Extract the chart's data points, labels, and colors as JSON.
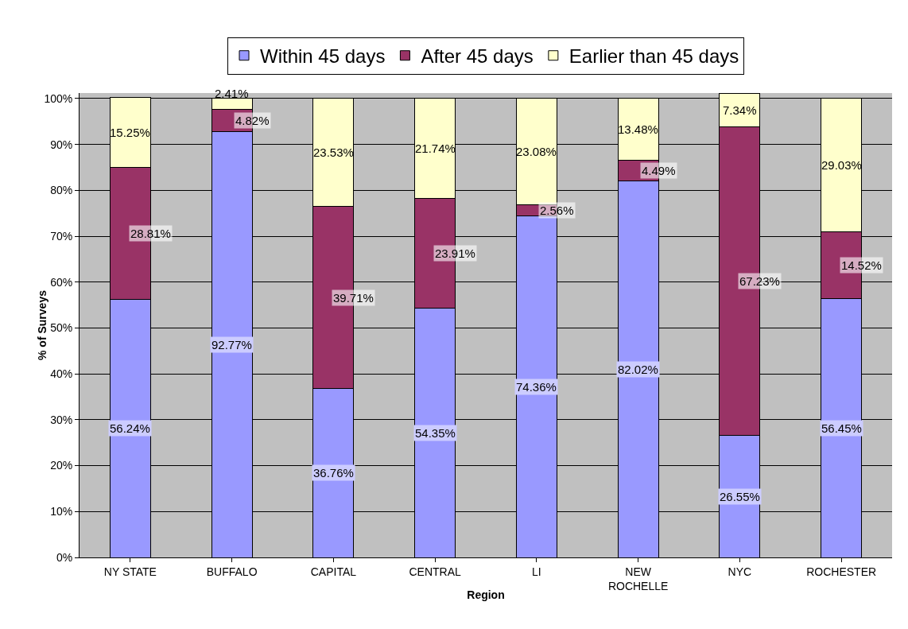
{
  "chart_data": {
    "type": "bar",
    "stacked": true,
    "xlabel": "Region",
    "ylabel": "% of Surveys",
    "categories": [
      "NY STATE",
      "BUFFALO",
      "CAPITAL",
      "CENTRAL",
      "LI",
      "NEW\nROCHELLE",
      "NYC",
      "ROCHESTER"
    ],
    "series": [
      {
        "name": "Within 45 days",
        "color": "#9999ff",
        "values": [
          56.24,
          92.77,
          36.76,
          54.35,
          74.36,
          82.02,
          26.55,
          56.45
        ],
        "value_labels": [
          "56.24%",
          "92.77%",
          "36.76%",
          "54.35%",
          "74.36%",
          "82.02%",
          "26.55%",
          "56.45%"
        ]
      },
      {
        "name": "After 45 days",
        "color": "#993366",
        "values": [
          28.81,
          4.82,
          39.71,
          23.91,
          2.56,
          4.49,
          67.23,
          14.52
        ],
        "value_labels": [
          "28.81%",
          "4.82%",
          "39.71%",
          "23.91%",
          "2.56%",
          "4.49%",
          "67.23%",
          "14.52%"
        ]
      },
      {
        "name": "Earlier than 45 days",
        "color": "#ffffcc",
        "values": [
          15.25,
          2.41,
          23.53,
          21.74,
          23.08,
          13.48,
          7.34,
          29.03
        ],
        "value_labels": [
          "15.25%",
          "2.41%",
          "23.53%",
          "21.74%",
          "23.08%",
          "13.48%",
          "7.34%",
          "29.03%"
        ]
      }
    ],
    "ylim": [
      0,
      101.2
    ],
    "yticks": [
      {
        "value": 0,
        "label": "0%"
      },
      {
        "value": 10,
        "label": "10%"
      },
      {
        "value": 20,
        "label": "20%"
      },
      {
        "value": 30,
        "label": "30%"
      },
      {
        "value": 40,
        "label": "40%"
      },
      {
        "value": 50,
        "label": "50%"
      },
      {
        "value": 60,
        "label": "60%"
      },
      {
        "value": 70,
        "label": "70%"
      },
      {
        "value": 80,
        "label": "80%"
      },
      {
        "value": 90,
        "label": "90%"
      },
      {
        "value": 100,
        "label": "100%"
      }
    ],
    "grid": "y",
    "legend": "top"
  }
}
